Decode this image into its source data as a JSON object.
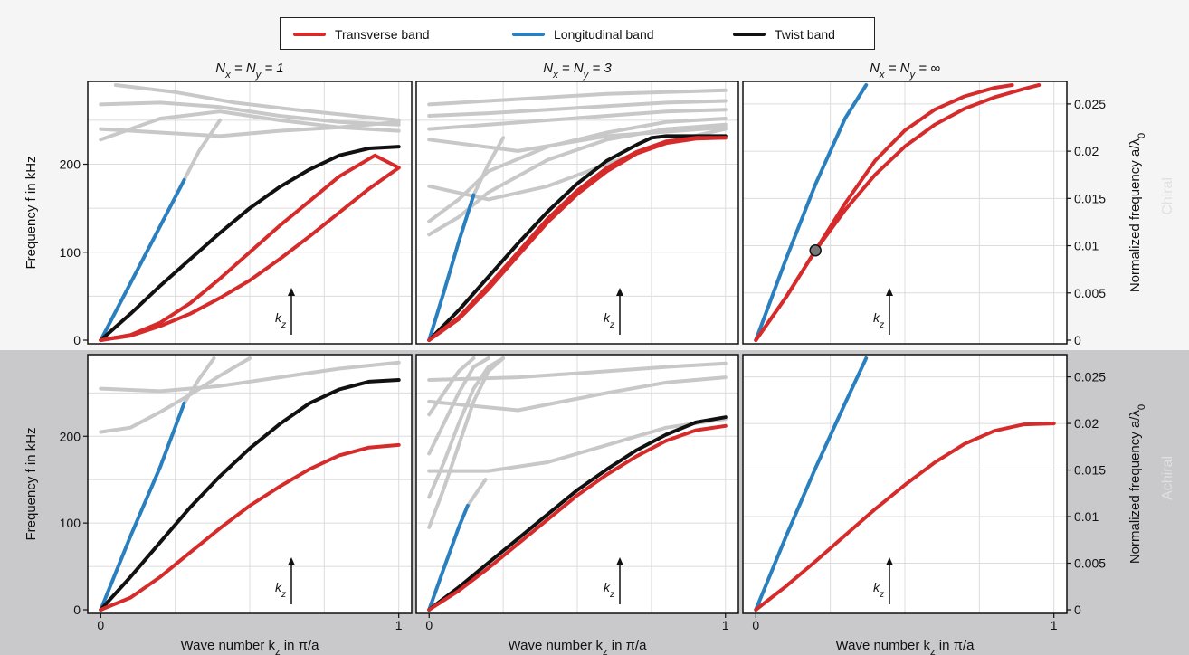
{
  "legend": {
    "items": [
      {
        "label": "Transverse band",
        "color": "#d62b2b"
      },
      {
        "label": "Longitudinal band",
        "color": "#2a7fbf"
      },
      {
        "label": "Twist band",
        "color": "#111111"
      }
    ]
  },
  "row_labels": {
    "top": "Chiral",
    "bottom": "Achiral"
  },
  "colors": {
    "transverse": "#d62b2b",
    "longitudinal": "#2a7fbf",
    "twist": "#111111",
    "other": "#c8c8c8"
  },
  "arrow_label": "k_z",
  "chart_data": [
    {
      "type": "line",
      "id": "chiral-1",
      "row": "Chiral",
      "title": "N_x = N_y = 1",
      "xlabel": "",
      "ylabel": "Frequency f in kHz",
      "xlim": [
        0,
        1
      ],
      "ylim": [
        0,
        290
      ],
      "yticks": [
        0,
        100,
        200
      ],
      "xticks": [],
      "grid": true,
      "series": [
        {
          "name": "Longitudinal band",
          "kind": "longitudinal",
          "x": [
            0,
            0.1,
            0.2,
            0.28
          ],
          "y": [
            0,
            65,
            130,
            182
          ]
        },
        {
          "kind": "other",
          "x": [
            0.28,
            0.33,
            0.4
          ],
          "y": [
            182,
            215,
            250
          ]
        },
        {
          "name": "Twist band",
          "kind": "twist",
          "x": [
            0,
            0.1,
            0.2,
            0.3,
            0.4,
            0.5,
            0.6,
            0.7,
            0.8,
            0.9,
            1.0
          ],
          "y": [
            0,
            30,
            62,
            92,
            122,
            150,
            174,
            194,
            210,
            218,
            220
          ]
        },
        {
          "name": "Transverse band",
          "kind": "transverse",
          "x": [
            0,
            0.1,
            0.2,
            0.3,
            0.4,
            0.5,
            0.6,
            0.7,
            0.8,
            0.87,
            0.92,
            1.0
          ],
          "y": [
            0,
            6,
            20,
            42,
            70,
            100,
            130,
            158,
            186,
            200,
            210,
            196
          ]
        },
        {
          "name": "Transverse band",
          "kind": "transverse",
          "x": [
            0,
            0.1,
            0.2,
            0.3,
            0.4,
            0.5,
            0.6,
            0.7,
            0.8,
            0.9,
            1.0
          ],
          "y": [
            0,
            5,
            16,
            30,
            48,
            68,
            92,
            118,
            145,
            172,
            196
          ]
        },
        {
          "kind": "other",
          "x": [
            0,
            0.2,
            0.4,
            0.6,
            0.8,
            1.0
          ],
          "y": [
            228,
            252,
            260,
            250,
            242,
            238
          ]
        },
        {
          "kind": "other",
          "x": [
            0,
            0.2,
            0.4,
            0.6,
            0.8,
            1.0
          ],
          "y": [
            268,
            270,
            265,
            255,
            248,
            245
          ]
        },
        {
          "kind": "other",
          "x": [
            0,
            0.2,
            0.4,
            0.6,
            0.8,
            1.0
          ],
          "y": [
            240,
            236,
            232,
            238,
            242,
            248
          ]
        },
        {
          "kind": "other",
          "x": [
            0.05,
            0.25,
            0.45,
            0.65,
            0.85,
            1.0
          ],
          "y": [
            290,
            282,
            270,
            262,
            255,
            250
          ]
        }
      ]
    },
    {
      "type": "line",
      "id": "chiral-3",
      "row": "Chiral",
      "title": "N_x = N_y = 3",
      "xlabel": "",
      "ylabel": "",
      "xlim": [
        0,
        1
      ],
      "ylim": [
        0,
        290
      ],
      "yticks": [],
      "xticks": [],
      "grid": true,
      "series": [
        {
          "name": "Longitudinal band",
          "kind": "longitudinal",
          "x": [
            0,
            0.05,
            0.1,
            0.15
          ],
          "y": [
            0,
            55,
            112,
            165
          ]
        },
        {
          "kind": "other",
          "x": [
            0.15,
            0.2,
            0.25
          ],
          "y": [
            165,
            200,
            230
          ]
        },
        {
          "name": "Twist band",
          "kind": "twist",
          "x": [
            0,
            0.1,
            0.2,
            0.3,
            0.4,
            0.5,
            0.6,
            0.7,
            0.75,
            0.8,
            0.9,
            1.0
          ],
          "y": [
            0,
            34,
            72,
            110,
            146,
            178,
            204,
            222,
            230,
            232,
            232,
            232
          ]
        },
        {
          "name": "Transverse band",
          "kind": "transverse",
          "x": [
            0,
            0.1,
            0.2,
            0.3,
            0.4,
            0.5,
            0.6,
            0.7,
            0.8,
            0.9,
            1.0
          ],
          "y": [
            0,
            26,
            62,
            100,
            138,
            170,
            196,
            214,
            226,
            230,
            230
          ]
        },
        {
          "name": "Transverse band",
          "kind": "transverse",
          "x": [
            0,
            0.1,
            0.2,
            0.3,
            0.4,
            0.5,
            0.6,
            0.7,
            0.8,
            0.9,
            1.0
          ],
          "y": [
            0,
            24,
            58,
            96,
            134,
            166,
            192,
            212,
            224,
            229,
            230
          ]
        },
        {
          "kind": "other",
          "x": [
            0,
            0.1,
            0.2,
            0.4,
            0.6,
            0.8,
            1.0
          ],
          "y": [
            120,
            140,
            168,
            205,
            228,
            240,
            245
          ]
        },
        {
          "kind": "other",
          "x": [
            0,
            0.1,
            0.2,
            0.4,
            0.6,
            0.8,
            1.0
          ],
          "y": [
            135,
            160,
            192,
            220,
            236,
            248,
            252
          ]
        },
        {
          "kind": "other",
          "x": [
            0,
            0.2,
            0.4,
            0.6,
            0.8,
            1.0
          ],
          "y": [
            175,
            160,
            175,
            200,
            225,
            240
          ]
        },
        {
          "kind": "other",
          "x": [
            0,
            0.2,
            0.4,
            0.6,
            0.8,
            1.0
          ],
          "y": [
            240,
            245,
            250,
            255,
            260,
            262
          ]
        },
        {
          "kind": "other",
          "x": [
            0,
            0.2,
            0.4,
            0.6,
            0.8,
            1.0
          ],
          "y": [
            255,
            258,
            262,
            266,
            270,
            272
          ]
        },
        {
          "kind": "other",
          "x": [
            0,
            0.2,
            0.4,
            0.6,
            0.8,
            1.0
          ],
          "y": [
            268,
            272,
            276,
            280,
            282,
            284
          ]
        },
        {
          "kind": "other",
          "x": [
            0,
            0.3,
            0.6,
            1.0
          ],
          "y": [
            228,
            215,
            232,
            242
          ]
        }
      ]
    },
    {
      "type": "line",
      "id": "chiral-inf",
      "row": "Chiral",
      "title": "N_x = N_y = ∞",
      "xlabel": "",
      "ylabel": "Normalized frequency a/λ_0",
      "xlim": [
        0,
        1
      ],
      "ylim": [
        0,
        0.027
      ],
      "yticks": [
        0,
        0.005,
        0.01,
        0.015,
        0.02,
        0.025
      ],
      "xticks": [],
      "grid": true,
      "series": [
        {
          "name": "Longitudinal band",
          "kind": "longitudinal",
          "x": [
            0,
            0.1,
            0.2,
            0.3,
            0.37
          ],
          "y": [
            0,
            0.0085,
            0.0165,
            0.0235,
            0.027
          ]
        },
        {
          "name": "Transverse band",
          "kind": "transverse",
          "x": [
            0,
            0.1,
            0.2,
            0.3,
            0.4,
            0.5,
            0.6,
            0.7,
            0.8,
            0.9,
            0.95
          ],
          "y": [
            0,
            0.0045,
            0.0095,
            0.0138,
            0.0175,
            0.0205,
            0.0228,
            0.0245,
            0.0257,
            0.0266,
            0.027
          ]
        },
        {
          "name": "Transverse band",
          "kind": "transverse",
          "x": [
            0,
            0.1,
            0.2,
            0.3,
            0.4,
            0.5,
            0.6,
            0.7,
            0.8,
            0.86
          ],
          "y": [
            0,
            0.0045,
            0.0095,
            0.0145,
            0.019,
            0.0222,
            0.0244,
            0.0258,
            0.0267,
            0.027
          ]
        }
      ],
      "annotations": [
        {
          "kind": "marker",
          "x": 0.2,
          "y": 0.0095
        }
      ]
    },
    {
      "type": "line",
      "id": "achiral-1",
      "row": "Achiral",
      "title": "",
      "xlabel": "Wave number k_z in π/a",
      "ylabel": "Frequency f in kHz",
      "xlim": [
        0,
        1
      ],
      "ylim": [
        0,
        290
      ],
      "yticks": [
        0,
        100,
        200
      ],
      "xticks": [
        0,
        1
      ],
      "grid": true,
      "series": [
        {
          "name": "Longitudinal band",
          "kind": "longitudinal",
          "x": [
            0,
            0.1,
            0.2,
            0.28
          ],
          "y": [
            0,
            85,
            165,
            238
          ]
        },
        {
          "kind": "other",
          "x": [
            0.28,
            0.33,
            0.38
          ],
          "y": [
            238,
            266,
            290
          ]
        },
        {
          "name": "Twist band",
          "kind": "twist",
          "x": [
            0,
            0.1,
            0.2,
            0.3,
            0.4,
            0.5,
            0.6,
            0.7,
            0.8,
            0.9,
            1.0
          ],
          "y": [
            0,
            38,
            78,
            118,
            154,
            186,
            214,
            238,
            254,
            263,
            265
          ]
        },
        {
          "name": "Transverse band",
          "kind": "transverse",
          "x": [
            0,
            0.1,
            0.2,
            0.3,
            0.4,
            0.5,
            0.6,
            0.7,
            0.8,
            0.9,
            1.0
          ],
          "y": [
            0,
            14,
            38,
            66,
            94,
            120,
            142,
            162,
            178,
            187,
            190
          ]
        },
        {
          "kind": "other",
          "x": [
            0,
            0.1,
            0.2,
            0.3,
            0.4,
            0.5
          ],
          "y": [
            205,
            210,
            228,
            248,
            270,
            290
          ]
        },
        {
          "kind": "other",
          "x": [
            0,
            0.2,
            0.4,
            0.6,
            0.8,
            1.0
          ],
          "y": [
            255,
            252,
            258,
            268,
            278,
            285
          ]
        }
      ]
    },
    {
      "type": "line",
      "id": "achiral-3",
      "row": "Achiral",
      "title": "",
      "xlabel": "Wave number k_z in π/a",
      "ylabel": "",
      "xlim": [
        0,
        1
      ],
      "ylim": [
        0,
        290
      ],
      "yticks": [],
      "xticks": [
        0,
        1
      ],
      "grid": true,
      "series": [
        {
          "name": "Longitudinal band",
          "kind": "longitudinal",
          "x": [
            0,
            0.05,
            0.1,
            0.13
          ],
          "y": [
            0,
            48,
            95,
            120
          ]
        },
        {
          "kind": "other",
          "x": [
            0.13,
            0.16,
            0.19
          ],
          "y": [
            120,
            135,
            150
          ]
        },
        {
          "name": "Twist band",
          "kind": "twist",
          "x": [
            0,
            0.1,
            0.2,
            0.3,
            0.4,
            0.5,
            0.6,
            0.7,
            0.8,
            0.9,
            1.0
          ],
          "y": [
            0,
            26,
            54,
            82,
            110,
            138,
            162,
            184,
            202,
            216,
            222
          ]
        },
        {
          "name": "Transverse band",
          "kind": "transverse",
          "x": [
            0,
            0.1,
            0.2,
            0.3,
            0.4,
            0.5,
            0.6,
            0.7,
            0.8,
            0.9,
            1.0
          ],
          "y": [
            0,
            22,
            48,
            76,
            104,
            132,
            156,
            177,
            195,
            207,
            212
          ]
        },
        {
          "kind": "other",
          "x": [
            0,
            0.05,
            0.1,
            0.15,
            0.2,
            0.25
          ],
          "y": [
            95,
            140,
            190,
            240,
            275,
            290
          ]
        },
        {
          "kind": "other",
          "x": [
            0,
            0.05,
            0.1,
            0.15,
            0.2,
            0.25
          ],
          "y": [
            130,
            170,
            215,
            255,
            280,
            290
          ]
        },
        {
          "kind": "other",
          "x": [
            0,
            0.05,
            0.1,
            0.15,
            0.2
          ],
          "y": [
            180,
            215,
            250,
            280,
            290
          ]
        },
        {
          "kind": "other",
          "x": [
            0,
            0.05,
            0.1,
            0.15
          ],
          "y": [
            225,
            250,
            275,
            290
          ]
        },
        {
          "kind": "other",
          "x": [
            0,
            0.2,
            0.4,
            0.6,
            0.8,
            1.0
          ],
          "y": [
            160,
            160,
            170,
            190,
            210,
            220
          ]
        },
        {
          "kind": "other",
          "x": [
            0,
            0.3,
            0.6,
            0.8,
            1.0
          ],
          "y": [
            240,
            230,
            250,
            262,
            268
          ]
        },
        {
          "kind": "other",
          "x": [
            0,
            0.3,
            0.6,
            0.8,
            1.0
          ],
          "y": [
            265,
            268,
            275,
            280,
            284
          ]
        }
      ]
    },
    {
      "type": "line",
      "id": "achiral-inf",
      "row": "Achiral",
      "title": "",
      "xlabel": "Wave number k_z in π/a",
      "ylabel": "Normalized frequency a/λ_0",
      "xlim": [
        0,
        1
      ],
      "ylim": [
        0,
        0.027
      ],
      "yticks": [
        0,
        0.005,
        0.01,
        0.015,
        0.02,
        0.025
      ],
      "xticks": [
        0,
        1
      ],
      "grid": true,
      "series": [
        {
          "name": "Longitudinal band",
          "kind": "longitudinal",
          "x": [
            0,
            0.1,
            0.2,
            0.3,
            0.37
          ],
          "y": [
            0,
            0.0078,
            0.0152,
            0.0222,
            0.027
          ]
        },
        {
          "name": "Transverse band",
          "kind": "transverse",
          "x": [
            0,
            0.1,
            0.2,
            0.3,
            0.4,
            0.5,
            0.6,
            0.7,
            0.8,
            0.9,
            1.0
          ],
          "y": [
            0,
            0.0025,
            0.0052,
            0.008,
            0.0108,
            0.0134,
            0.0158,
            0.0178,
            0.0192,
            0.0199,
            0.02
          ]
        }
      ]
    }
  ]
}
